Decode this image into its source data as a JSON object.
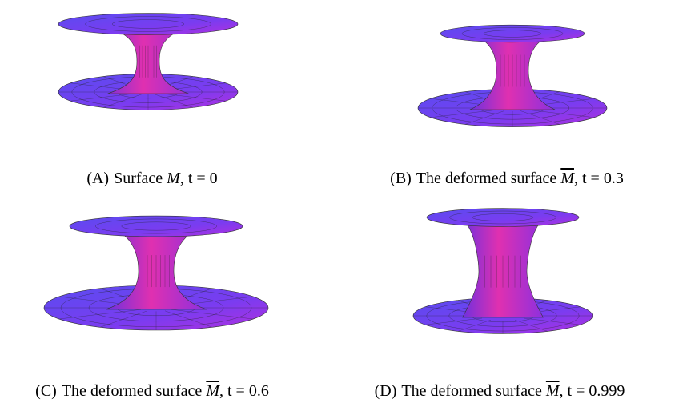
{
  "figure": {
    "panels": [
      {
        "label": "(A)",
        "text": "Surface",
        "symbol": "M",
        "overline": false,
        "param": ", t = 0"
      },
      {
        "label": "(B)",
        "text": "The deformed surface",
        "symbol": "M",
        "overline": true,
        "param": ", t = 0.3"
      },
      {
        "label": "(C)",
        "text": "The deformed surface",
        "symbol": "M",
        "overline": true,
        "param": ", t = 0.6"
      },
      {
        "label": "(D)",
        "text": "The deformed surface",
        "symbol": "M",
        "overline": true,
        "param": ", t = 0.999"
      }
    ]
  }
}
